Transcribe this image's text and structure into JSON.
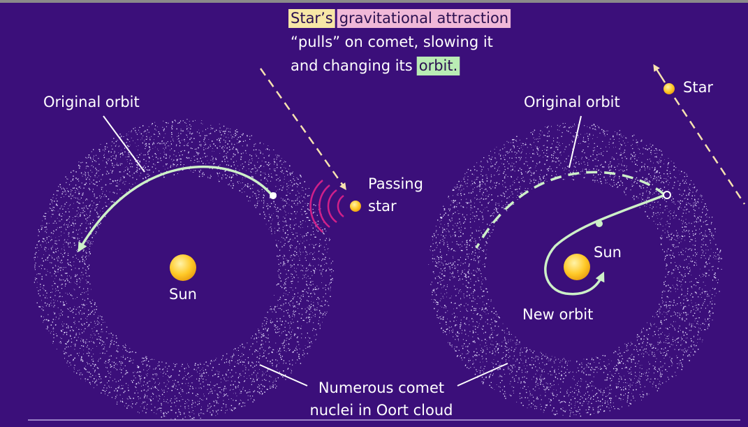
{
  "caption": {
    "lines": [
      [
        "Star’s",
        "gravitational attraction"
      ],
      [
        "“pulls” on comet, slowing it"
      ],
      [
        "and changing its",
        "orbit."
      ]
    ]
  },
  "left_panel": {
    "orbit_label": "Original orbit",
    "star_label": [
      "Passing",
      "star"
    ],
    "sun_label": "Sun"
  },
  "right_panel": {
    "star_label": "Star",
    "orbit_label": "Original orbit",
    "sun_label": "Sun",
    "new_orbit_label": "New orbit"
  },
  "cloud_label": [
    "Numerous comet",
    "nuclei in Oort cloud"
  ]
}
